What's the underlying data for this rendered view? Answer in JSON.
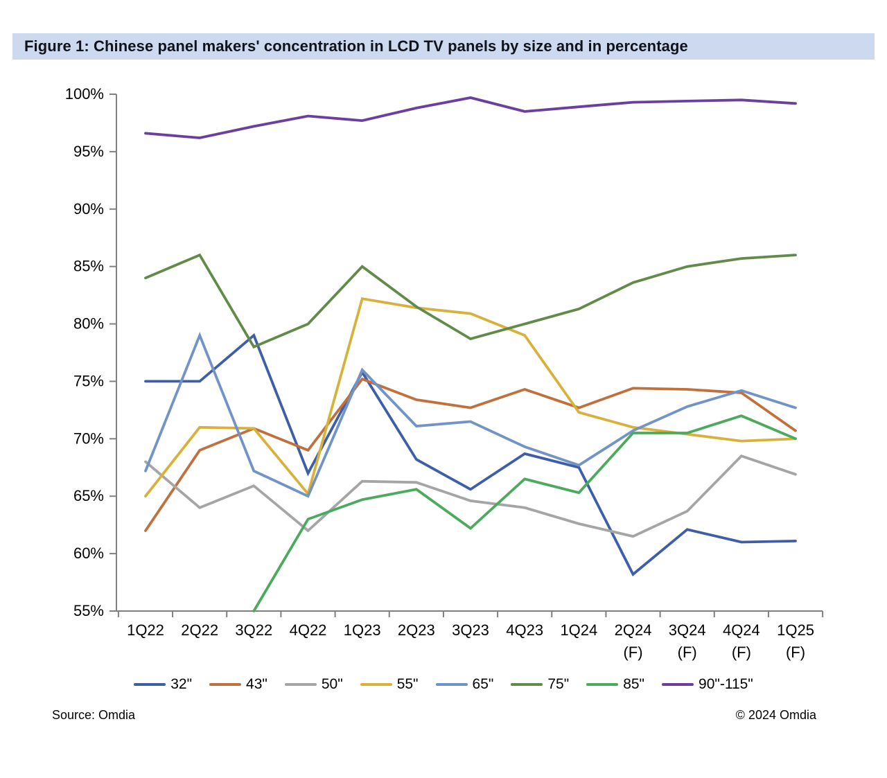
{
  "figure": {
    "title": "Figure 1: Chinese panel makers' concentration in LCD TV panels by size and in percentage",
    "source": "Source: Omdia",
    "copyright": "© 2024 Omdia"
  },
  "chart_data": {
    "type": "line",
    "title": "Chinese panel makers' concentration in LCD TV panels by size and in percentage",
    "xlabel": "",
    "ylabel": "",
    "y_unit": "%",
    "ylim": [
      55,
      100
    ],
    "y_ticks": [
      100,
      95,
      90,
      85,
      80,
      75,
      70,
      65,
      60,
      55
    ],
    "grid": false,
    "legend_position": "bottom",
    "categories": [
      "1Q22",
      "2Q22",
      "3Q22",
      "4Q22",
      "1Q23",
      "2Q23",
      "3Q23",
      "4Q23",
      "1Q24",
      "2Q24",
      "3Q24",
      "4Q24",
      "1Q25"
    ],
    "forecast_label": "(F)",
    "forecast_from_index": 9,
    "axis_color": "#7f7f7f",
    "series": [
      {
        "name": "32\"",
        "color": "#3f5ea8",
        "values": [
          75,
          75,
          79,
          67,
          75.8,
          68.2,
          65.6,
          68.7,
          67.5,
          58.2,
          62.1,
          61,
          61.1
        ]
      },
      {
        "name": "43\"",
        "color": "#c0703c",
        "values": [
          62,
          69,
          70.9,
          69,
          75.2,
          73.4,
          72.7,
          74.3,
          72.7,
          74.4,
          74.3,
          74,
          70.7
        ]
      },
      {
        "name": "50\"",
        "color": "#a5a5a5",
        "values": [
          68,
          64,
          65.9,
          62,
          66.3,
          66.2,
          64.6,
          64,
          62.6,
          61.5,
          63.7,
          68.5,
          66.9
        ]
      },
      {
        "name": "55\"",
        "color": "#d6b23c",
        "values": [
          65,
          71,
          70.9,
          65.2,
          82.2,
          81.4,
          80.9,
          79,
          72.3,
          71,
          70.4,
          69.8,
          70
        ]
      },
      {
        "name": "65\"",
        "color": "#7293c5",
        "values": [
          67.2,
          79,
          67.2,
          65,
          76,
          71.1,
          71.5,
          69.3,
          67.7,
          70.7,
          72.8,
          74.2,
          72.7
        ]
      },
      {
        "name": "75\"",
        "color": "#628b4a",
        "values": [
          84,
          86,
          78,
          80,
          85,
          81.5,
          78.7,
          80,
          81.3,
          83.6,
          85,
          85.7,
          86
        ]
      },
      {
        "name": "85\"",
        "color": "#4caa5e",
        "values": [
          null,
          null,
          55,
          63,
          64.7,
          65.6,
          62.2,
          66.5,
          65.3,
          70.5,
          70.5,
          72,
          70
        ]
      },
      {
        "name": "90\"-115\"",
        "color": "#6b3fa0",
        "values": [
          96.6,
          96.2,
          97.2,
          98.1,
          97.7,
          98.8,
          99.7,
          98.5,
          98.9,
          99.3,
          99.4,
          99.5,
          99.2
        ]
      }
    ]
  }
}
